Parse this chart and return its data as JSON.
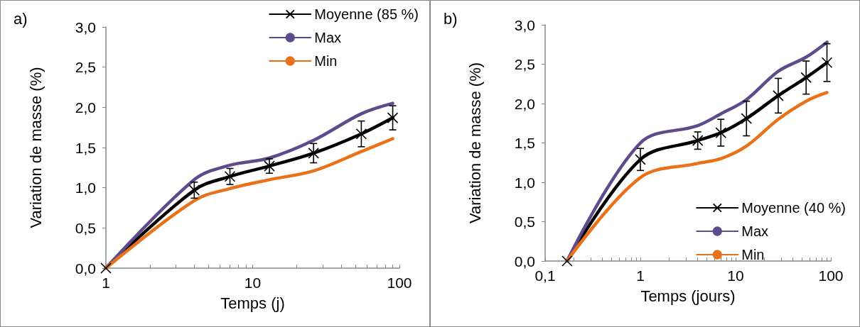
{
  "chart_data": [
    {
      "type": "line",
      "annotations": [
        "a)"
      ],
      "xlabel": "Temps (j)",
      "ylabel": "Variation de masse (%)",
      "log": "x",
      "xlim": [
        1,
        100
      ],
      "xticks": [
        1,
        10,
        100
      ],
      "ylim": [
        0,
        3
      ],
      "yticks": [
        {
          "value": 0,
          "label": "0,0"
        },
        {
          "value": 0.5,
          "label": "0,5"
        },
        {
          "value": 1,
          "label": "1,0"
        },
        {
          "value": 1.5,
          "label": "1,5"
        },
        {
          "value": 2,
          "label": "2,0"
        },
        {
          "value": 2.5,
          "label": "2,5"
        },
        {
          "value": 3,
          "label": "3,0"
        }
      ],
      "grid": false,
      "legend": "top right",
      "x": [
        1,
        4,
        7,
        13,
        26,
        55,
        90
      ],
      "series": [
        {
          "name": "Moyenne (85 %)",
          "color": "#000000",
          "marker": "cross",
          "values": [
            0,
            0.97,
            1.14,
            1.27,
            1.43,
            1.67,
            1.87
          ],
          "errors": [
            null,
            0.1,
            0.1,
            0.09,
            0.12,
            0.16,
            0.15
          ]
        },
        {
          "name": "Max",
          "color": "#5f4b8b",
          "marker": "none",
          "values": [
            0,
            1.1,
            1.28,
            1.37,
            1.59,
            1.92,
            2.05
          ]
        },
        {
          "name": "Min",
          "color": "#e8711a",
          "marker": "none",
          "values": [
            0,
            0.84,
            0.99,
            1.1,
            1.21,
            1.45,
            1.61
          ]
        }
      ]
    },
    {
      "type": "line",
      "annotations": [
        "b)"
      ],
      "xlabel": "Temps (jours)",
      "ylabel": "Variation de masse (%)",
      "log": "x",
      "xlim": [
        0.1,
        100
      ],
      "xticks": [
        {
          "value": 0.1,
          "label": "0,1"
        },
        1,
        10,
        100
      ],
      "ylim": [
        0,
        3
      ],
      "yticks": [
        {
          "value": 0,
          "label": "0,0"
        },
        {
          "value": 0.5,
          "label": "0,5"
        },
        {
          "value": 1,
          "label": "1,0"
        },
        {
          "value": 1.5,
          "label": "1,5"
        },
        {
          "value": 2,
          "label": "2,0"
        },
        {
          "value": 2.5,
          "label": "2,5"
        },
        {
          "value": 3,
          "label": "3,0"
        }
      ],
      "grid": false,
      "legend": "bottom right",
      "x": [
        0.17,
        1,
        4,
        7,
        13,
        28,
        55,
        91
      ],
      "series": [
        {
          "name": "Moyenne (40 %)",
          "color": "#000000",
          "marker": "cross",
          "values": [
            0,
            1.29,
            1.53,
            1.63,
            1.81,
            2.1,
            2.33,
            2.52
          ],
          "errors": [
            null,
            0.14,
            0.11,
            0.17,
            0.22,
            0.22,
            0.21,
            0.24
          ]
        },
        {
          "name": "Max",
          "color": "#5f4b8b",
          "marker": "none",
          "values": [
            0,
            1.5,
            1.72,
            1.87,
            2.05,
            2.41,
            2.59,
            2.78
          ]
        },
        {
          "name": "Min",
          "color": "#e8711a",
          "marker": "none",
          "values": [
            0,
            1.06,
            1.24,
            1.3,
            1.46,
            1.8,
            2.03,
            2.14
          ]
        }
      ]
    }
  ]
}
